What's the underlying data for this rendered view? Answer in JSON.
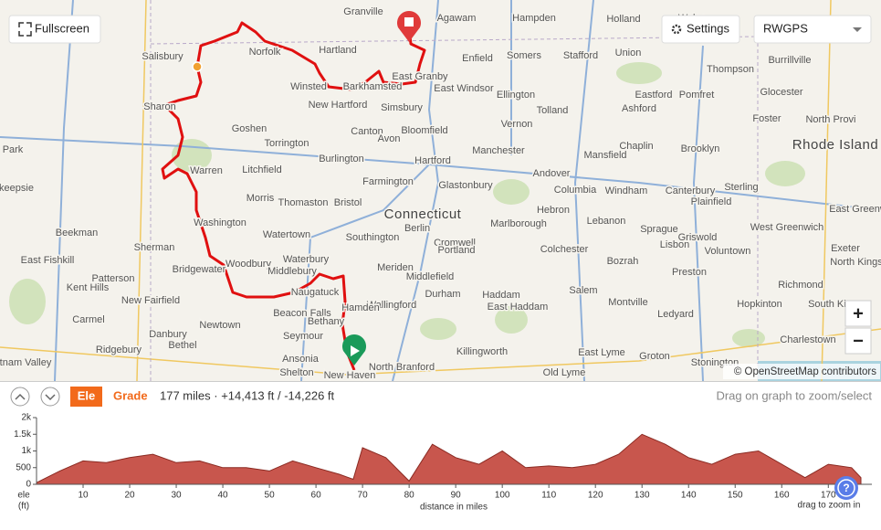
{
  "map": {
    "controls": {
      "fullscreen": "Fullscreen",
      "settings": "Settings",
      "layer": "RWGPS",
      "zoom_in": "+",
      "zoom_out": "−"
    },
    "labels": [
      "Granville",
      "Agawam",
      "Hampden",
      "Holland",
      "Wales",
      "Hartland",
      "Norfolk",
      "Enfield",
      "Somers",
      "Stafford",
      "Union",
      "Salisbury",
      "Thompson",
      "Burrillville",
      "Winsted",
      "Barkhamsted",
      "East Granby",
      "Ellington",
      "Eastford",
      "Pomfret",
      "Glocester",
      "Sharon",
      "New Hartford",
      "Simsbury",
      "East Windsor",
      "Tolland",
      "Ashford",
      "Foster",
      "North Provi",
      "Goshen",
      "Canton",
      "Avon",
      "Bloomfield",
      "Vernon",
      "Park",
      "Torrington",
      "Manchester",
      "Chaplin",
      "Brooklyn",
      "Rhode Island",
      "Burlington",
      "Hartford",
      "Mansfield",
      "Warren",
      "Litchfield",
      "Farmington",
      "Glastonbury",
      "Andover",
      "Columbia",
      "Windham",
      "Canterbury",
      "Sterling",
      "keepsie",
      "Morris",
      "Thomaston",
      "Bristol",
      "Plainfield",
      "Connecticut",
      "Hebron",
      "West Greenwich",
      "East Greenw",
      "Washington",
      "Watertown",
      "Berlin",
      "Marlborough",
      "Lebanon",
      "Sprague",
      "Griswold",
      "Beekman",
      "Southington",
      "Cromwell",
      "Lisbon",
      "Sherman",
      "Portland",
      "Colchester",
      "Voluntown",
      "Exeter",
      "Waterbury",
      "Bozrah",
      "North Kings",
      "East Fishkill",
      "Woodbury",
      "Middlebury",
      "Meriden",
      "Middlefield",
      "Bridgewater",
      "Preston",
      "Patterson",
      "Kent Hills",
      "Naugatuck",
      "Wallingford",
      "Durham",
      "Haddam",
      "Salem",
      "Richmond",
      "New Fairfield",
      "Montville",
      "Hopkinton",
      "South King",
      "Carmel",
      "Newtown",
      "Beacon Falls",
      "Hamden",
      "East Haddam",
      "Ledyard",
      "Bethany",
      "Danbury",
      "Bethel",
      "Seymour",
      "Charlestown",
      "Ridgebury",
      "Ansonia",
      "Killingworth",
      "East Lyme",
      "Groton",
      "Stonington",
      "tnam Valley",
      "Shelton",
      "New Haven",
      "North Branford",
      "Old Lyme"
    ],
    "attribution": "© OpenStreetMap contributors"
  },
  "toolbar": {
    "ele": "Ele",
    "grade": "Grade",
    "summary": "177 miles · +14,413 ft / -14,226 ft",
    "hint": "Drag on graph to zoom/select",
    "help": "?"
  },
  "chart_data": {
    "type": "area",
    "x_label": "distance in miles",
    "y_label": "ele",
    "y_unit": "(ft)",
    "annotation": "drag to zoom in",
    "color": "#c8564d",
    "x": [
      0,
      5,
      10,
      15,
      20,
      25,
      30,
      35,
      40,
      45,
      50,
      55,
      60,
      65,
      68,
      70,
      75,
      80,
      85,
      90,
      95,
      100,
      105,
      110,
      115,
      120,
      125,
      130,
      135,
      140,
      145,
      150,
      155,
      160,
      165,
      170,
      175,
      177
    ],
    "values": [
      50,
      400,
      700,
      650,
      800,
      900,
      650,
      700,
      500,
      500,
      400,
      700,
      500,
      300,
      150,
      1100,
      800,
      100,
      1200,
      800,
      600,
      1000,
      500,
      550,
      500,
      600,
      900,
      1500,
      1200,
      800,
      600,
      900,
      1000,
      600,
      200,
      600,
      500,
      200
    ],
    "xlim": [
      0,
      177
    ],
    "ylim": [
      0,
      2000
    ],
    "xticks": [
      10,
      20,
      30,
      40,
      50,
      60,
      70,
      80,
      90,
      100,
      110,
      120,
      130,
      140,
      150,
      160,
      170
    ],
    "yticks": [
      0,
      500,
      {
        "value": 1000,
        "label": "1k"
      },
      {
        "value": 1500,
        "label": "1.5k"
      },
      {
        "value": 2000,
        "label": "2k"
      }
    ]
  }
}
